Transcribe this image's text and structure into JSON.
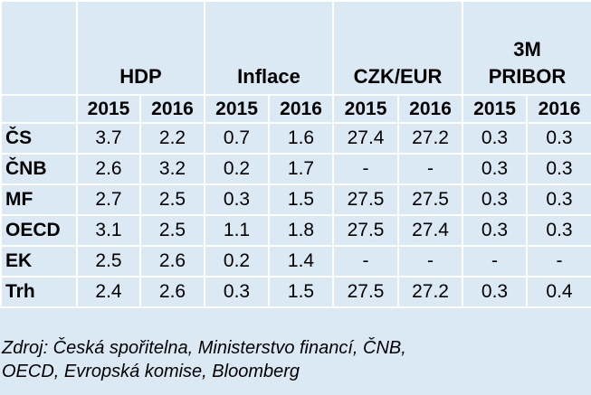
{
  "header": {
    "groups": [
      "HDP",
      "Inflace",
      "CZK/EUR",
      "3M PRIBOR"
    ],
    "group_lines": [
      [
        "HDP"
      ],
      [
        "Inflace"
      ],
      [
        "CZK/EUR"
      ],
      [
        "3M",
        "PRIBOR"
      ]
    ],
    "years": [
      "2015",
      "2016",
      "2015",
      "2016",
      "2015",
      "2016",
      "2015",
      "2016"
    ]
  },
  "rows": [
    {
      "label": "ČS",
      "values": [
        "3.7",
        "2.2",
        "0.7",
        "1.6",
        "27.4",
        "27.2",
        "0.3",
        "0.3"
      ]
    },
    {
      "label": "ČNB",
      "values": [
        "2.6",
        "3.2",
        "0.2",
        "1.7",
        "-",
        "-",
        "0.3",
        "0.3"
      ]
    },
    {
      "label": "MF",
      "values": [
        "2.7",
        "2.5",
        "0.3",
        "1.5",
        "27.5",
        "27.5",
        "0.3",
        "0.3"
      ]
    },
    {
      "label": "OECD",
      "values": [
        "3.1",
        "2.5",
        "1.1",
        "1.8",
        "27.5",
        "27.4",
        "0.3",
        "0.3"
      ]
    },
    {
      "label": "EK",
      "values": [
        "2.5",
        "2.6",
        "0.2",
        "1.4",
        "-",
        "-",
        "-",
        "-"
      ]
    },
    {
      "label": "Trh",
      "values": [
        "2.4",
        "2.6",
        "0.3",
        "1.5",
        "27.5",
        "27.2",
        "0.3",
        "0.4"
      ]
    }
  ],
  "source": {
    "line1": "Zdroj: Česká spořitelna, Ministerstvo financí, ČNB,",
    "line2": "OECD, Evropská komise, Bloomberg"
  },
  "colors": {
    "background": "#dbe9f5",
    "grid_lines": "#ffffff",
    "text": "#000000"
  }
}
